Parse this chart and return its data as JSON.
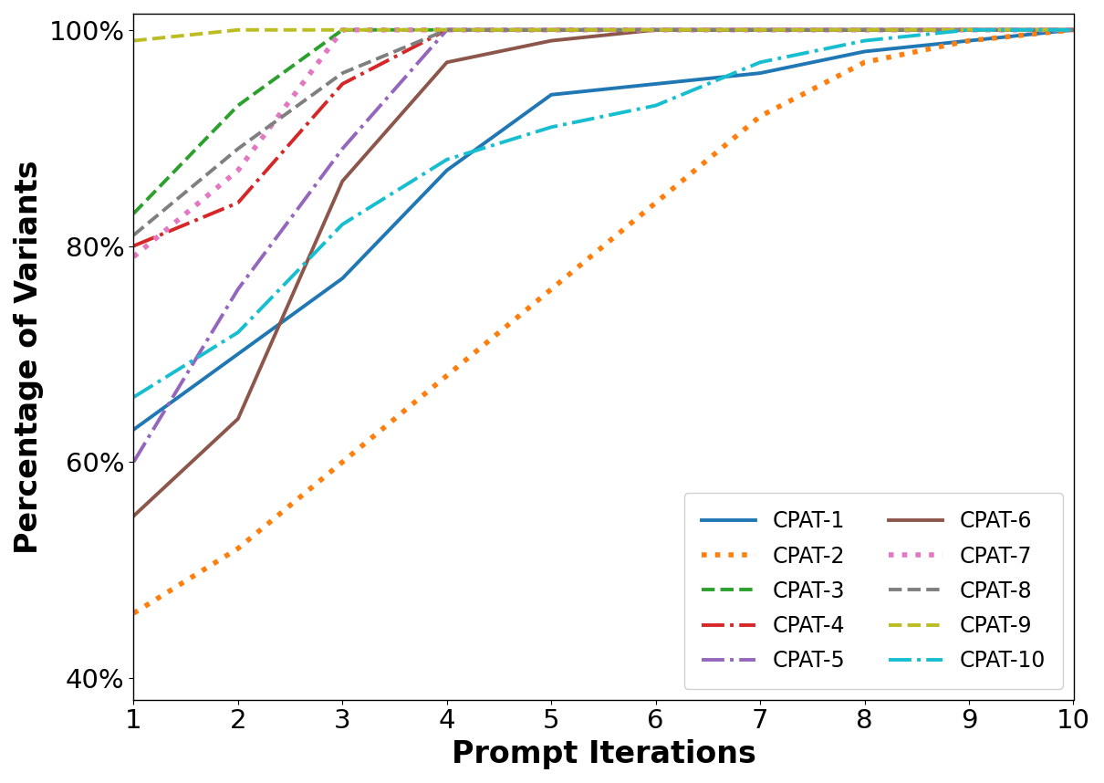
{
  "title": "",
  "xlabel": "Prompt Iterations",
  "ylabel": "Percentage of Variants",
  "xlim": [
    1,
    10
  ],
  "ylim": [
    0.38,
    1.015
  ],
  "xticks": [
    1,
    2,
    3,
    4,
    5,
    6,
    7,
    8,
    9,
    10
  ],
  "yticks": [
    0.4,
    0.6,
    0.8,
    1.0
  ],
  "ytick_labels": [
    "40%",
    "60%",
    "80%",
    "100%"
  ],
  "series": [
    {
      "label": "CPAT-1",
      "color": "#1f77b4",
      "linestyle": "solid",
      "linewidth": 2.8,
      "data_x": [
        1,
        2,
        3,
        4,
        5,
        6,
        7,
        8,
        9,
        10
      ],
      "data_y": [
        0.63,
        0.7,
        0.77,
        0.87,
        0.94,
        0.95,
        0.96,
        0.98,
        0.99,
        1.0
      ]
    },
    {
      "label": "CPAT-2",
      "color": "#ff7f0e",
      "linestyle": "dotted",
      "linewidth": 4.0,
      "data_x": [
        1,
        2,
        3,
        4,
        5,
        6,
        7,
        8,
        9,
        10
      ],
      "data_y": [
        0.46,
        0.52,
        0.6,
        0.68,
        0.76,
        0.84,
        0.92,
        0.97,
        0.99,
        1.0
      ]
    },
    {
      "label": "CPAT-3",
      "color": "#2ca02c",
      "linestyle": "dashed",
      "linewidth": 2.8,
      "data_x": [
        1,
        2,
        3,
        4,
        5,
        6,
        7,
        8,
        9,
        10
      ],
      "data_y": [
        0.83,
        0.93,
        1.0,
        1.0,
        1.0,
        1.0,
        1.0,
        1.0,
        1.0,
        1.0
      ]
    },
    {
      "label": "CPAT-4",
      "color": "#d62728",
      "linestyle": "dashdot",
      "linewidth": 2.8,
      "data_x": [
        1,
        2,
        3,
        4,
        5,
        6,
        7,
        8,
        9,
        10
      ],
      "data_y": [
        0.8,
        0.84,
        0.95,
        1.0,
        1.0,
        1.0,
        1.0,
        1.0,
        1.0,
        1.0
      ]
    },
    {
      "label": "CPAT-5",
      "color": "#9467bd",
      "linestyle": "dashdot",
      "linewidth": 2.8,
      "data_x": [
        1,
        2,
        3,
        4,
        5,
        6,
        7,
        8,
        9,
        10
      ],
      "data_y": [
        0.6,
        0.76,
        0.89,
        1.0,
        1.0,
        1.0,
        1.0,
        1.0,
        1.0,
        1.0
      ]
    },
    {
      "label": "CPAT-6",
      "color": "#8c564b",
      "linestyle": "solid",
      "linewidth": 2.8,
      "data_x": [
        1,
        2,
        3,
        4,
        5,
        6,
        7,
        8,
        9,
        10
      ],
      "data_y": [
        0.55,
        0.64,
        0.86,
        0.97,
        0.99,
        1.0,
        1.0,
        1.0,
        1.0,
        1.0
      ]
    },
    {
      "label": "CPAT-7",
      "color": "#e377c2",
      "linestyle": "dotted",
      "linewidth": 4.0,
      "data_x": [
        1,
        2,
        3,
        4,
        5,
        6,
        7,
        8,
        9,
        10
      ],
      "data_y": [
        0.79,
        0.87,
        1.0,
        1.0,
        1.0,
        1.0,
        1.0,
        1.0,
        1.0,
        1.0
      ]
    },
    {
      "label": "CPAT-8",
      "color": "#7f7f7f",
      "linestyle": "dashed",
      "linewidth": 2.8,
      "data_x": [
        1,
        2,
        3,
        4,
        5,
        6,
        7,
        8,
        9,
        10
      ],
      "data_y": [
        0.81,
        0.89,
        0.96,
        1.0,
        1.0,
        1.0,
        1.0,
        1.0,
        1.0,
        1.0
      ]
    },
    {
      "label": "CPAT-9",
      "color": "#bcbd22",
      "linestyle": "dashed",
      "linewidth": 2.8,
      "data_x": [
        1,
        2,
        3,
        4,
        5,
        6,
        7,
        8,
        9,
        10
      ],
      "data_y": [
        0.99,
        1.0,
        1.0,
        1.0,
        1.0,
        1.0,
        1.0,
        1.0,
        1.0,
        1.0
      ]
    },
    {
      "label": "CPAT-10",
      "color": "#17becf",
      "linestyle": "dashdot",
      "linewidth": 2.8,
      "data_x": [
        1,
        2,
        3,
        4,
        5,
        6,
        7,
        8,
        9,
        10
      ],
      "data_y": [
        0.66,
        0.72,
        0.82,
        0.88,
        0.91,
        0.93,
        0.97,
        0.99,
        1.0,
        1.0
      ]
    }
  ],
  "legend_fontsize": 17,
  "xlabel_fontsize": 24,
  "ylabel_fontsize": 24,
  "tick_fontsize": 21,
  "background_color": "#ffffff"
}
